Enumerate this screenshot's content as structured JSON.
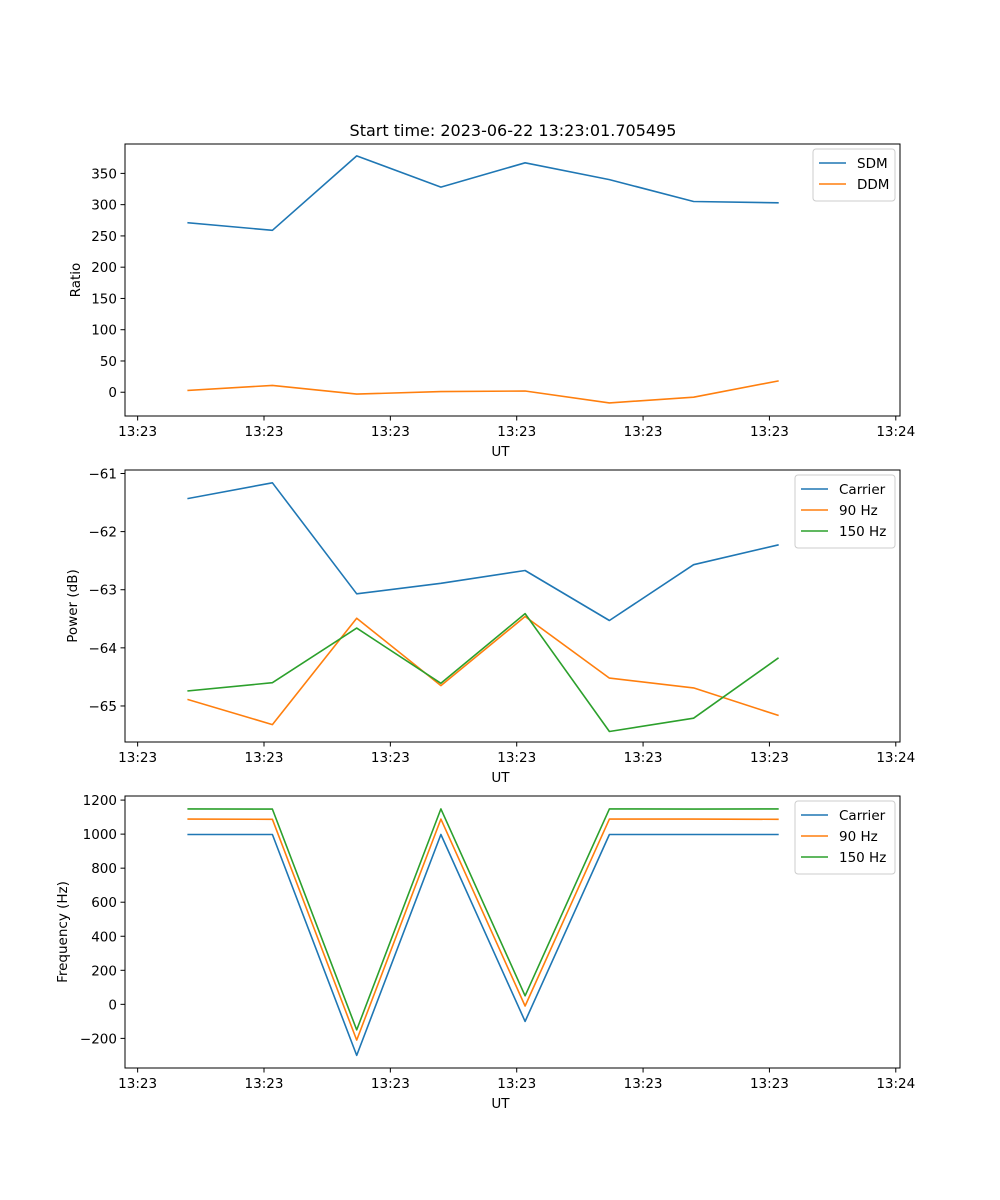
{
  "figure_title": "Start time: 2023-06-22 13:23:01.705495",
  "colors": {
    "blue": "#1f77b4",
    "orange": "#ff7f0e",
    "green": "#2ca02c"
  },
  "chart_data": [
    {
      "type": "line",
      "title": "Start time: 2023-06-22 13:23:01.705495",
      "xlabel": "UT",
      "ylabel": "Ratio",
      "x": [
        1,
        2,
        3,
        4,
        5,
        6,
        7,
        8
      ],
      "xlim": [
        0.25,
        9.45
      ],
      "x_ticks": [
        0.4,
        1.9,
        3.4,
        4.9,
        6.4,
        7.9,
        9.4
      ],
      "x_tick_labels": [
        "13:23",
        "13:23",
        "13:23",
        "13:23",
        "13:23",
        "13:23",
        "13:24"
      ],
      "ylim": [
        -38,
        397
      ],
      "y_ticks": [
        0,
        50,
        100,
        150,
        200,
        250,
        300,
        350
      ],
      "y_tick_labels": [
        "0",
        "50",
        "100",
        "150",
        "200",
        "250",
        "300",
        "350"
      ],
      "legend": "top-right",
      "series": [
        {
          "name": "SDM",
          "color": "#1f77b4",
          "values": [
            271,
            259,
            378,
            328,
            367,
            340,
            305,
            303
          ]
        },
        {
          "name": "DDM",
          "color": "#ff7f0e",
          "values": [
            3,
            11,
            -3,
            1,
            2,
            -17,
            -8,
            18
          ]
        }
      ]
    },
    {
      "type": "line",
      "title": "",
      "xlabel": "UT",
      "ylabel": "Power (dB)",
      "x": [
        1,
        2,
        3,
        4,
        5,
        6,
        7,
        8
      ],
      "xlim": [
        0.25,
        9.45
      ],
      "x_ticks": [
        0.4,
        1.9,
        3.4,
        4.9,
        6.4,
        7.9,
        9.4
      ],
      "x_tick_labels": [
        "13:23",
        "13:23",
        "13:23",
        "13:23",
        "13:23",
        "13:23",
        "13:24"
      ],
      "ylim": [
        -65.62,
        -60.94
      ],
      "y_ticks": [
        -65,
        -64,
        -63,
        -62,
        -61
      ],
      "y_tick_labels": [
        "−65",
        "−64",
        "−63",
        "−62",
        "−61"
      ],
      "legend": "top-right",
      "series": [
        {
          "name": "Carrier",
          "color": "#1f77b4",
          "values": [
            -61.43,
            -61.16,
            -63.07,
            -62.89,
            -62.67,
            -63.53,
            -62.57,
            -62.23
          ]
        },
        {
          "name": "90 Hz",
          "color": "#ff7f0e",
          "values": [
            -64.89,
            -65.32,
            -63.49,
            -64.65,
            -63.46,
            -64.52,
            -64.69,
            -65.16
          ]
        },
        {
          "name": "150 Hz",
          "color": "#2ca02c",
          "values": [
            -64.74,
            -64.6,
            -63.66,
            -64.61,
            -63.41,
            -65.44,
            -65.21,
            -64.18
          ]
        }
      ]
    },
    {
      "type": "line",
      "title": "",
      "xlabel": "UT",
      "ylabel": "Frequency (Hz)",
      "x": [
        1,
        2,
        3,
        4,
        5,
        6,
        7,
        8
      ],
      "xlim": [
        0.25,
        9.45
      ],
      "x_ticks": [
        0.4,
        1.9,
        3.4,
        4.9,
        6.4,
        7.9,
        9.4
      ],
      "x_tick_labels": [
        "13:23",
        "13:23",
        "13:23",
        "13:23",
        "13:23",
        "13:23",
        "13:24"
      ],
      "ylim": [
        -374,
        1224
      ],
      "y_ticks": [
        -200,
        0,
        200,
        400,
        600,
        800,
        1000,
        1200
      ],
      "y_tick_labels": [
        "−200",
        "0",
        "200",
        "400",
        "600",
        "800",
        "1000",
        "1200"
      ],
      "legend": "top-right",
      "series": [
        {
          "name": "Carrier",
          "color": "#1f77b4",
          "values": [
            998,
            998,
            -300,
            998,
            -100,
            998,
            998,
            998
          ]
        },
        {
          "name": "90 Hz",
          "color": "#ff7f0e",
          "values": [
            1088,
            1087,
            -210,
            1088,
            -10,
            1088,
            1088,
            1087
          ]
        },
        {
          "name": "150 Hz",
          "color": "#2ca02c",
          "values": [
            1148,
            1147,
            -150,
            1148,
            50,
            1148,
            1147,
            1148
          ]
        }
      ]
    }
  ]
}
